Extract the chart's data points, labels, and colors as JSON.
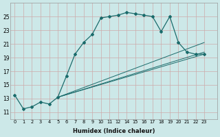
{
  "xlabel": "Humidex (Indice chaleur)",
  "background_color": "#cce8e8",
  "grid_color": "#ccaaaa",
  "line_color": "#1a6b6b",
  "xlim": [
    -0.5,
    23.5
  ],
  "ylim": [
    10.0,
    27.0
  ],
  "yticks": [
    11,
    13,
    15,
    17,
    19,
    21,
    23,
    25
  ],
  "xtick_labels": [
    "0",
    "1",
    "2",
    "3",
    "4",
    "5",
    "6",
    "7",
    "8",
    "9",
    "10",
    "11",
    "12",
    "14",
    "15",
    "16",
    "17",
    "18",
    "19",
    "20",
    "21",
    "22",
    "23"
  ],
  "xtick_positions": [
    0,
    1,
    2,
    3,
    4,
    5,
    6,
    7,
    8,
    9,
    10,
    11,
    12,
    13,
    14,
    15,
    16,
    17,
    18,
    19,
    20,
    21,
    22
  ],
  "main_line": {
    "x": [
      0,
      1,
      2,
      3,
      4,
      5,
      6,
      7,
      8,
      9,
      10,
      11,
      12,
      13,
      14,
      15,
      16,
      17,
      18,
      19,
      20,
      21,
      22
    ],
    "y": [
      13.5,
      11.5,
      11.8,
      12.5,
      12.2,
      13.2,
      16.3,
      19.5,
      21.2,
      22.4,
      24.8,
      25.0,
      25.2,
      25.6,
      25.4,
      25.2,
      25.0,
      22.8,
      25.0,
      21.2,
      19.8,
      19.5,
      19.5
    ]
  },
  "diag_lines": [
    {
      "x": [
        5,
        22
      ],
      "y": [
        13.2,
        19.5
      ]
    },
    {
      "x": [
        5,
        22
      ],
      "y": [
        13.2,
        21.2
      ]
    },
    {
      "x": [
        5,
        22
      ],
      "y": [
        13.2,
        19.8
      ]
    }
  ]
}
